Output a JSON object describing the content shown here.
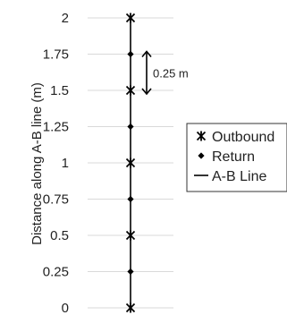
{
  "chart_data": {
    "type": "scatter",
    "title": "",
    "ylabel": "Distance along A-B line (m)",
    "xlabel": "",
    "ylim": [
      0,
      2
    ],
    "yticks": [
      {
        "value": 0,
        "label": "0"
      },
      {
        "value": 0.25,
        "label": "0.25"
      },
      {
        "value": 0.5,
        "label": "0.5"
      },
      {
        "value": 0.75,
        "label": "0.75"
      },
      {
        "value": 1,
        "label": "1"
      },
      {
        "value": 1.25,
        "label": "1.25"
      },
      {
        "value": 1.5,
        "label": "1.5"
      },
      {
        "value": 1.75,
        "label": "1.75"
      },
      {
        "value": 2,
        "label": "2"
      }
    ],
    "grid": true,
    "legend_position": "right",
    "series": [
      {
        "name": "Outbound",
        "marker": "asterisk",
        "color": "#000000",
        "y": [
          0,
          0.5,
          1,
          1.5,
          2
        ]
      },
      {
        "name": "Return",
        "marker": "diamond",
        "color": "#000000",
        "y": [
          0.25,
          0.75,
          1.25,
          1.75
        ]
      },
      {
        "name": "A-B Line",
        "marker": "line",
        "color": "#000000",
        "y": [
          0,
          2
        ]
      }
    ],
    "annotation": {
      "label": "0.25 m",
      "from": 1.5,
      "to": 1.75
    }
  }
}
